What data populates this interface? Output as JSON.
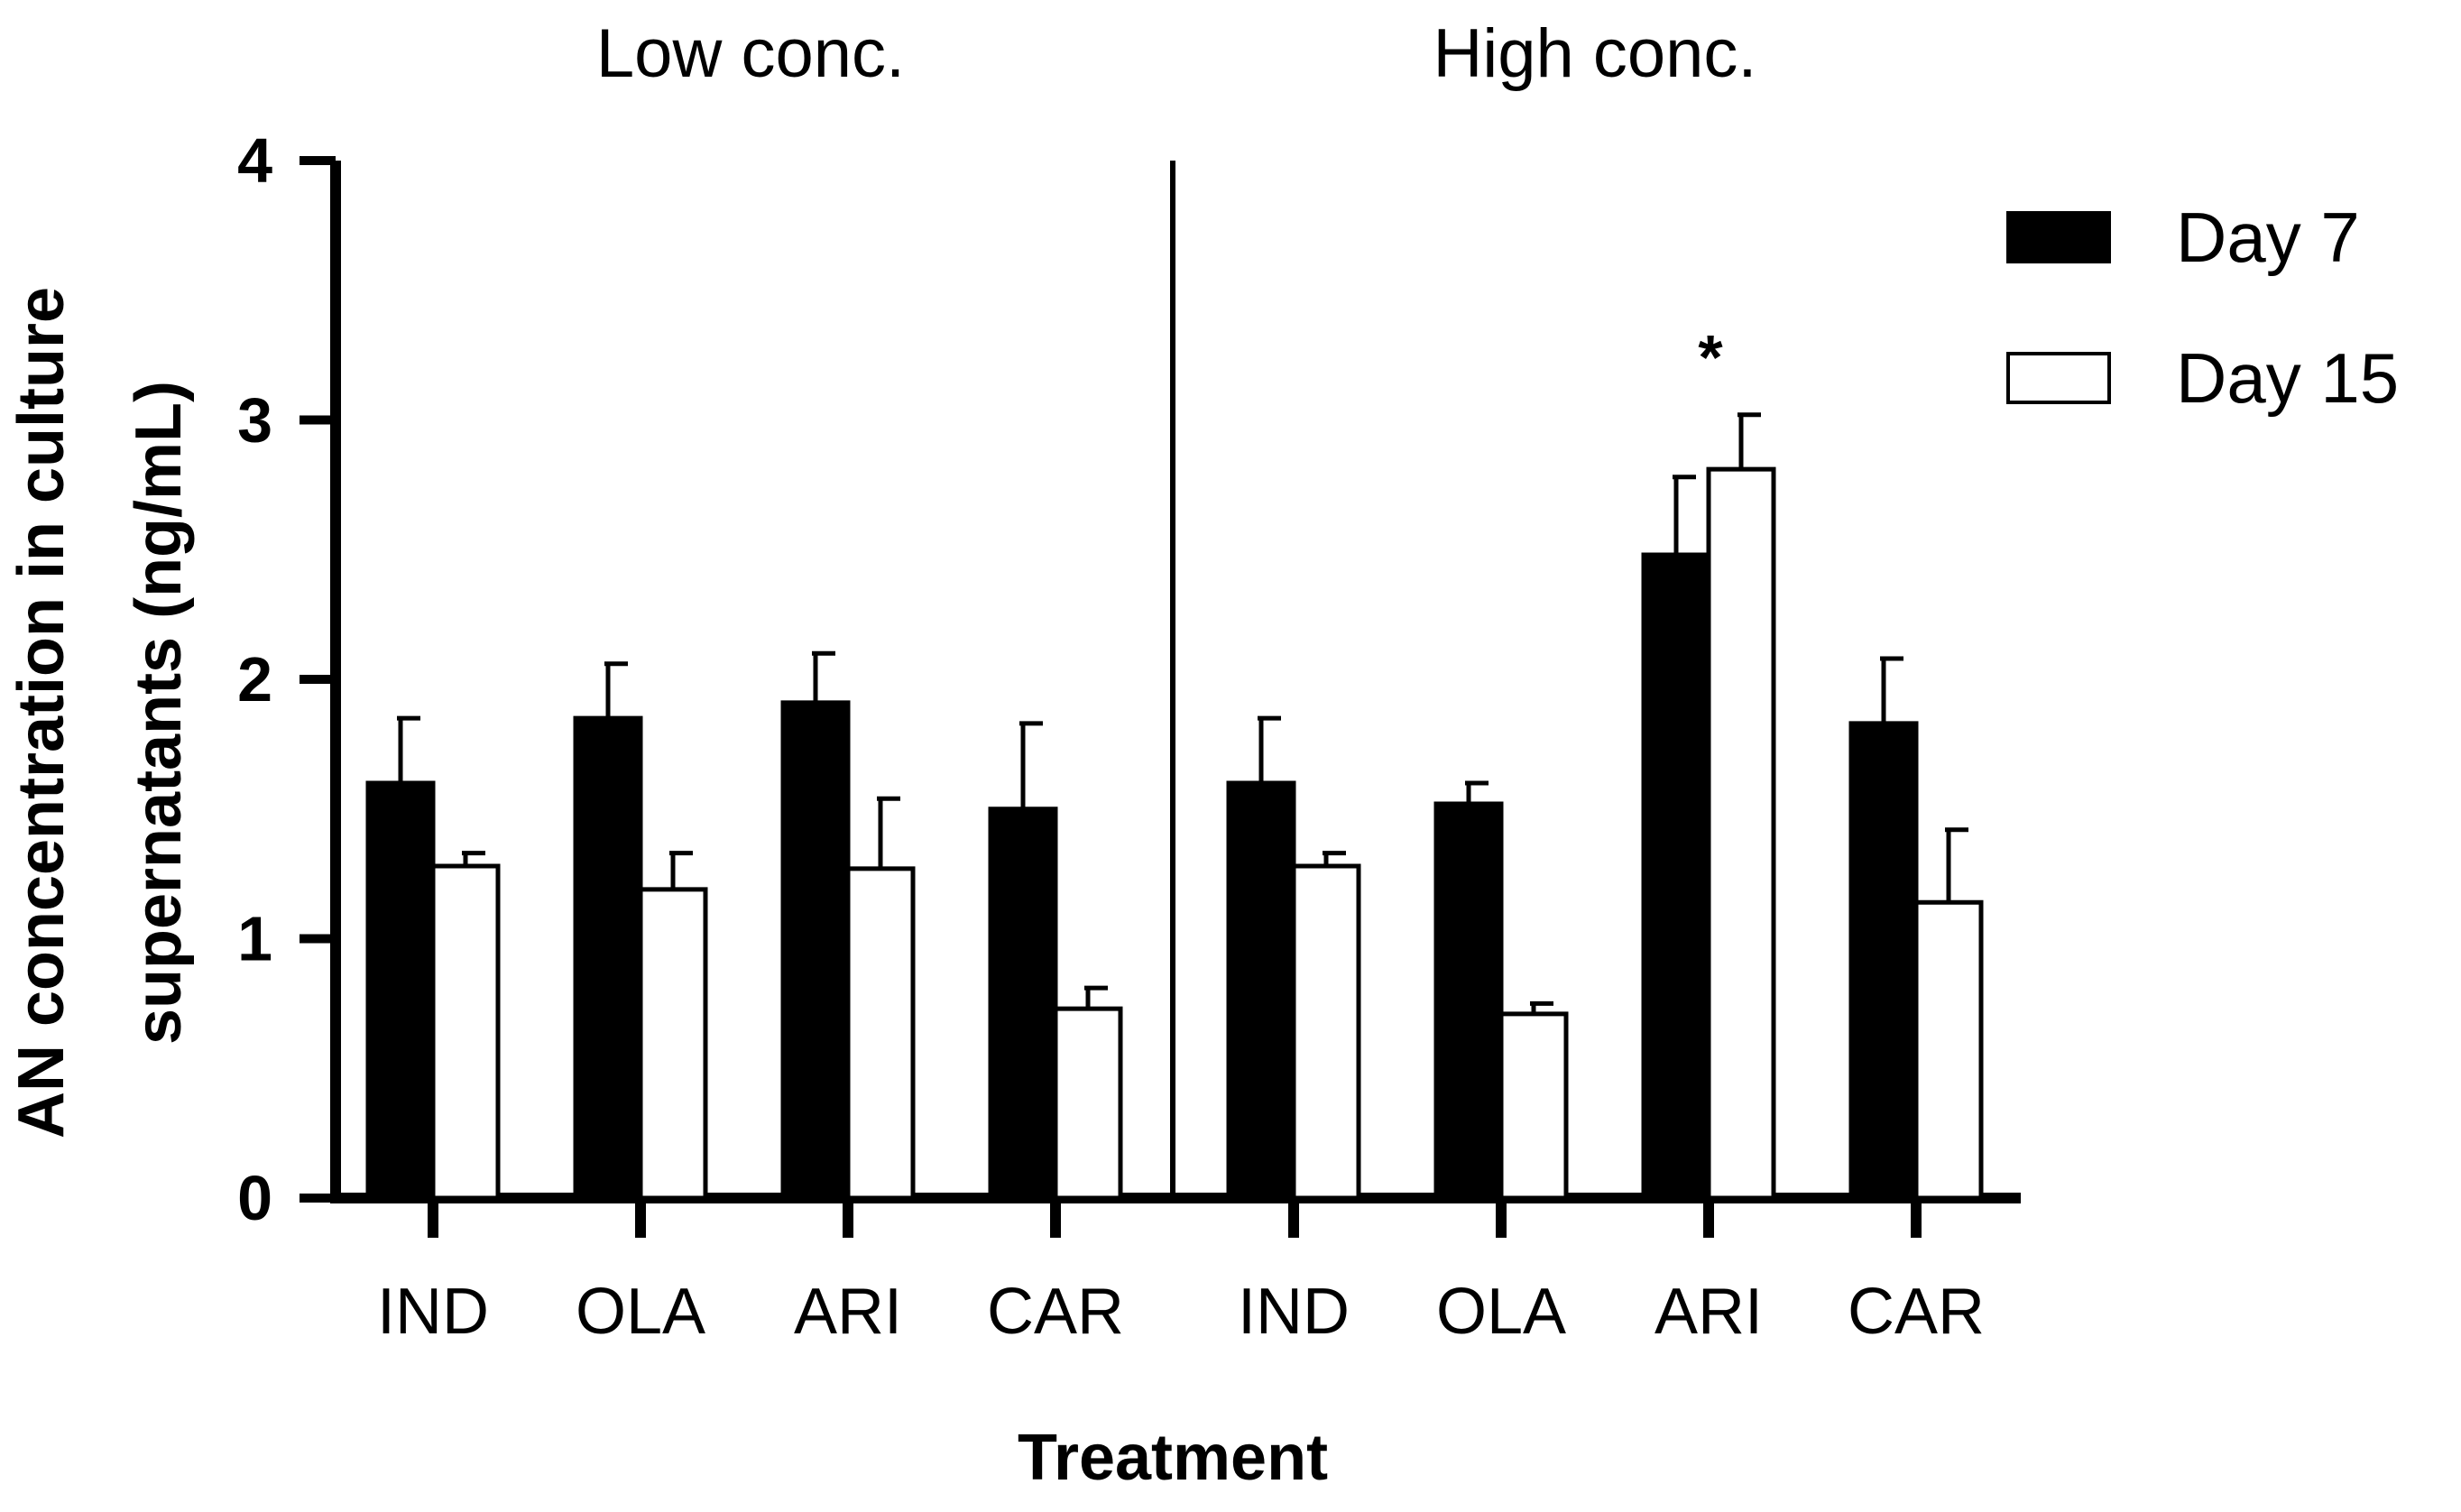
{
  "chart_data": {
    "type": "bar",
    "title": "",
    "xlabel": "Treatment",
    "ylabel_lines": [
      "AN concentration in culture",
      "supernatants (ng/mL)"
    ],
    "ylim": [
      0,
      4
    ],
    "yticks": [
      "0",
      "1",
      "2",
      "3",
      "4"
    ],
    "groups": [
      "Low conc.",
      "High conc."
    ],
    "categories": [
      "IND",
      "OLA",
      "ARI",
      "CAR"
    ],
    "series": [
      {
        "name": "Day 7",
        "color": "#000000",
        "values": [
          [
            1.6,
            1.85,
            1.91,
            1.5
          ],
          [
            1.6,
            1.52,
            2.48,
            1.83
          ]
        ],
        "errors": [
          [
            0.25,
            0.21,
            0.19,
            0.33
          ],
          [
            0.25,
            0.08,
            0.3,
            0.25
          ]
        ]
      },
      {
        "name": "Day 15",
        "color": "#ffffff",
        "values": [
          [
            1.28,
            1.19,
            1.27,
            0.73
          ],
          [
            1.28,
            0.71,
            2.81,
            1.14
          ]
        ],
        "errors": [
          [
            0.05,
            0.14,
            0.27,
            0.08
          ],
          [
            0.05,
            0.04,
            0.21,
            0.28
          ]
        ]
      }
    ],
    "annotations": [
      {
        "group": 1,
        "category": 2,
        "series": 1,
        "text": "*"
      }
    ],
    "legend_position": "top-right"
  }
}
